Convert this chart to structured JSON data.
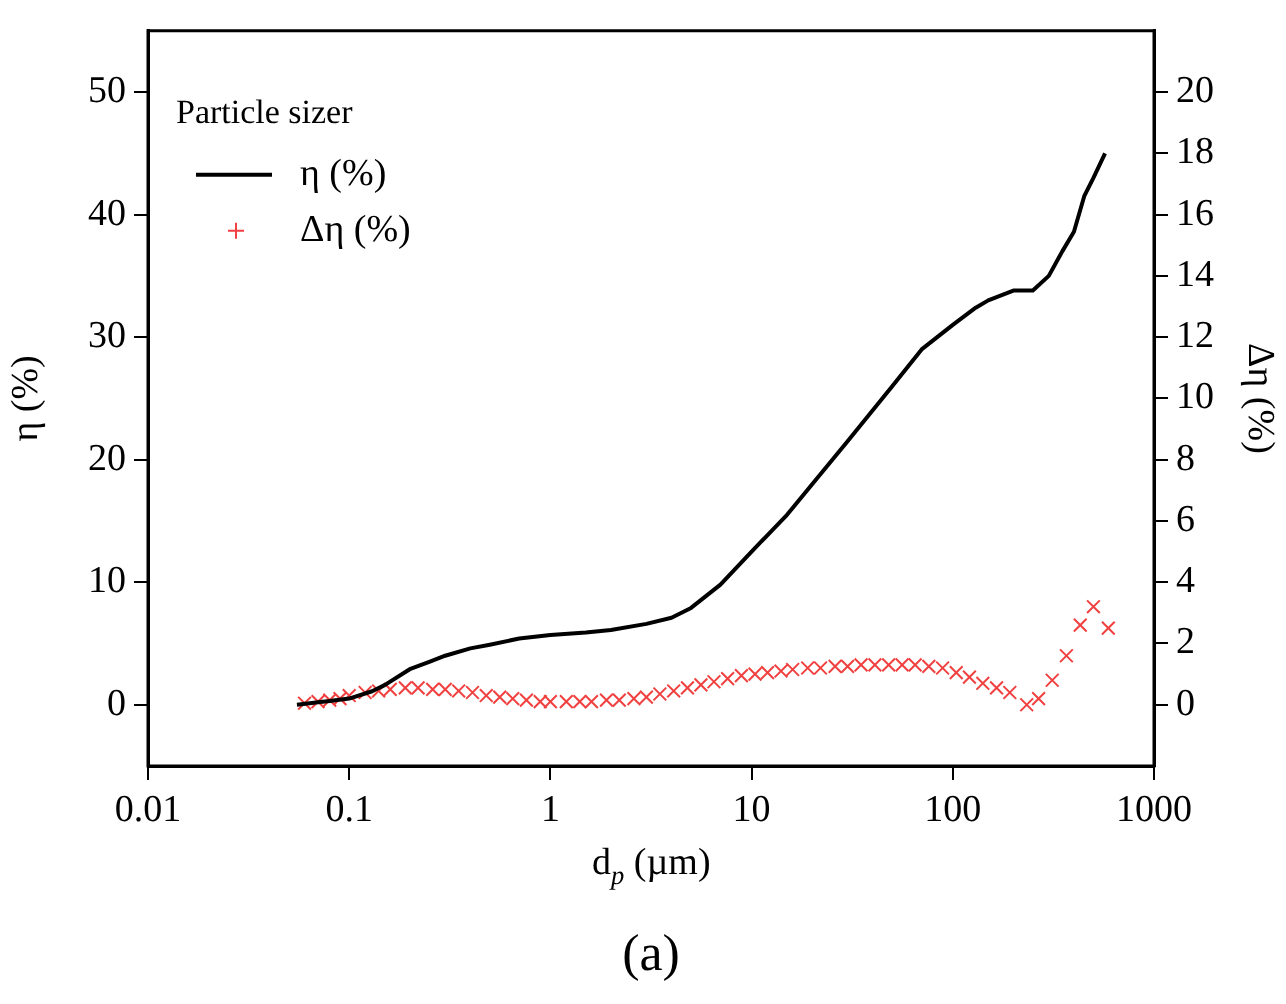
{
  "chart_data": {
    "type": "line",
    "xlabel": "d$_{p}$ (µm)",
    "ylabel": "η (%)",
    "y2label": "Δη (%)",
    "annotations": [
      "Particle sizer",
      "(a)"
    ],
    "log": "x",
    "xlim": [
      0.01,
      1000
    ],
    "xticks": [
      0.01,
      0.1,
      1,
      10,
      100,
      1000
    ],
    "ylim": [
      -5,
      55
    ],
    "yticks": [
      0,
      10,
      20,
      30,
      40,
      50
    ],
    "y2lim": [
      -2,
      22
    ],
    "y2ticks": [
      0,
      2,
      4,
      6,
      8,
      10,
      12,
      14,
      16,
      18,
      20
    ],
    "grid": false,
    "legend": "top left",
    "series": [
      {
        "name": "η (%)",
        "type": "line",
        "color": "#000000",
        "marker": "none",
        "line_style": "solid",
        "x": [
          0.055,
          0.07,
          0.08,
          0.1,
          0.13,
          0.15,
          0.2,
          0.25,
          0.3,
          0.4,
          0.5,
          0.7,
          1,
          1.5,
          2,
          3,
          4,
          5,
          7,
          10,
          15,
          20,
          30,
          50,
          70,
          100,
          130,
          150,
          200,
          250,
          300,
          350,
          400,
          450,
          500,
          571
        ],
        "values": [
          0,
          0.2,
          0.3,
          0.5,
          1.1,
          1.6,
          2.9,
          3.5,
          4.0,
          4.6,
          4.9,
          5.4,
          5.7,
          5.9,
          6.1,
          6.6,
          7.1,
          7.9,
          9.8,
          12.5,
          15.5,
          18,
          21.5,
          26,
          29,
          31,
          32.4,
          33,
          33.8,
          33.8,
          35,
          37,
          38.6,
          41.5,
          43,
          45
        ]
      },
      {
        "name": "Δη (%)",
        "type": "scatter",
        "axis": "y2",
        "color": "#f04040",
        "marker": "cross",
        "x": [
          0.06,
          0.07,
          0.08,
          0.09,
          0.1,
          0.12,
          0.14,
          0.16,
          0.19,
          0.22,
          0.26,
          0.3,
          0.35,
          0.41,
          0.48,
          0.56,
          0.65,
          0.76,
          0.89,
          1,
          1.2,
          1.4,
          1.6,
          1.9,
          2.2,
          2.6,
          3,
          3.5,
          4.1,
          4.8,
          5.6,
          6.5,
          7.6,
          8.9,
          10.4,
          12,
          14,
          16,
          19,
          22,
          26,
          30,
          35,
          41,
          48,
          56,
          65,
          76,
          89,
          104,
          121,
          141,
          165,
          192,
          233,
          267,
          312,
          367,
          430,
          500,
          593
        ],
        "values": [
          0.05,
          0.1,
          0.15,
          0.2,
          0.3,
          0.4,
          0.45,
          0.5,
          0.55,
          0.55,
          0.5,
          0.5,
          0.45,
          0.4,
          0.3,
          0.25,
          0.2,
          0.15,
          0.1,
          0.1,
          0.1,
          0.1,
          0.1,
          0.15,
          0.15,
          0.2,
          0.25,
          0.35,
          0.45,
          0.55,
          0.65,
          0.75,
          0.85,
          0.95,
          1.0,
          1.05,
          1.1,
          1.15,
          1.2,
          1.2,
          1.25,
          1.25,
          1.3,
          1.3,
          1.3,
          1.3,
          1.3,
          1.25,
          1.2,
          1.05,
          0.9,
          0.7,
          0.55,
          0.4,
          0,
          0.2,
          0.8,
          1.6,
          2.6,
          3.2,
          2.5
        ]
      }
    ]
  }
}
